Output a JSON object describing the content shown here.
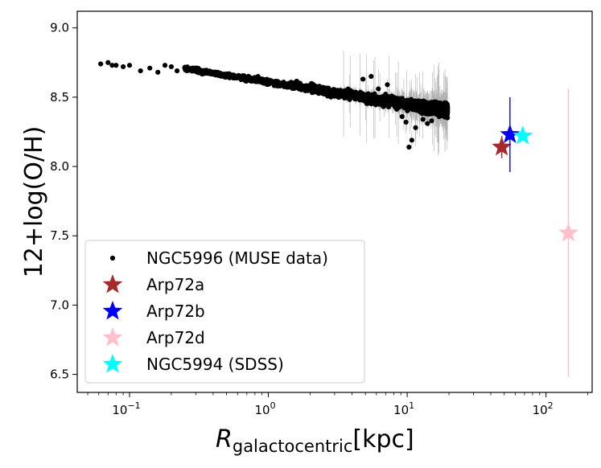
{
  "chart_data": {
    "type": "scatter",
    "xscale": "log",
    "xlim": [
      0.042,
      215
    ],
    "ylim": [
      6.37,
      9.12
    ],
    "xlabel_main": "R",
    "xlabel_sub": "galactocentric",
    "xlabel_unit": "[kpc]",
    "ylabel": "12+log(O/H)",
    "x_ticks": [
      {
        "value": 0.1,
        "base": "10",
        "exp": "−1"
      },
      {
        "value": 1,
        "base": "10",
        "exp": "0"
      },
      {
        "value": 10,
        "base": "10",
        "exp": "1"
      },
      {
        "value": 100,
        "base": "10",
        "exp": "2"
      }
    ],
    "y_ticks": [
      {
        "value": 6.5,
        "label": "6.5"
      },
      {
        "value": 7.0,
        "label": "7.0"
      },
      {
        "value": 7.5,
        "label": "7.5"
      },
      {
        "value": 8.0,
        "label": "8.0"
      },
      {
        "value": 8.5,
        "label": "8.5"
      },
      {
        "value": 9.0,
        "label": "9.0"
      }
    ],
    "legend_position": "lower-left",
    "series": [
      {
        "name": "NGC5996 (MUSE data)",
        "marker": "dot",
        "color": "#000000",
        "errcolor": "#b0b0b0",
        "trend": {
          "intercept": 8.61,
          "slope": -0.16
        },
        "x_range": [
          0.06,
          19.5
        ],
        "points": [
          {
            "x": 0.062,
            "y": 8.74
          },
          {
            "x": 0.07,
            "y": 8.75
          },
          {
            "x": 0.075,
            "y": 8.73
          },
          {
            "x": 0.08,
            "y": 8.73
          },
          {
            "x": 0.09,
            "y": 8.72
          },
          {
            "x": 0.1,
            "y": 8.73
          },
          {
            "x": 0.12,
            "y": 8.69
          },
          {
            "x": 0.14,
            "y": 8.71
          },
          {
            "x": 0.16,
            "y": 8.68
          },
          {
            "x": 0.18,
            "y": 8.73
          },
          {
            "x": 0.2,
            "y": 8.72
          },
          {
            "x": 0.22,
            "y": 8.69
          }
        ]
      },
      {
        "name": "Arp72a",
        "marker": "star",
        "color": "#a52a2a",
        "x": 48,
        "y": 8.14,
        "yerr": [
          0.08,
          0.08
        ]
      },
      {
        "name": "Arp72b",
        "marker": "star",
        "color": "#0000ff",
        "x": 55,
        "y": 8.23,
        "yerr": [
          0.27,
          0.27
        ]
      },
      {
        "name": "Arp72d",
        "marker": "star",
        "color": "#ffc0cb",
        "x": 145,
        "y": 7.52,
        "yerr": [
          1.04,
          1.04
        ]
      },
      {
        "name": "NGC5994 (SDSS)",
        "marker": "star",
        "color": "#00ffff",
        "x": 68,
        "y": 8.22,
        "yerr": [
          0.02,
          0.02
        ]
      }
    ]
  }
}
